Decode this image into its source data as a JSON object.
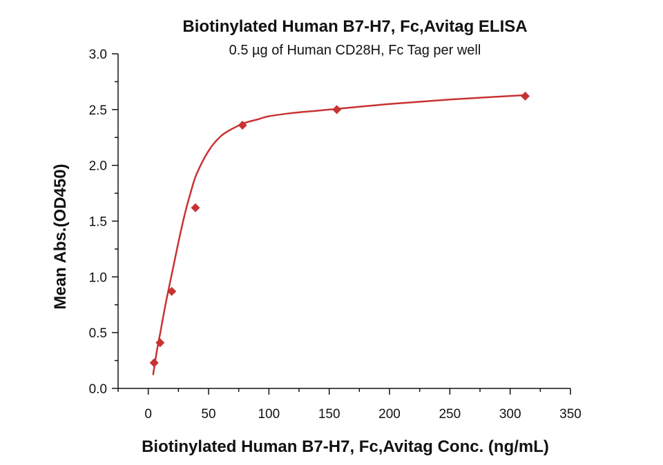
{
  "chart_data": {
    "type": "scatter",
    "title": "Biotinylated Human B7-H7, Fc,Avitag ELISA",
    "subtitle": "0.5 µg of Human CD28H, Fc Tag per well",
    "xlabel": "Biotinylated Human B7-H7, Fc,Avitag Conc. (ng/mL)",
    "ylabel": "Mean Abs.(OD450)",
    "xlim": [
      -25,
      350
    ],
    "ylim": [
      0,
      3.0
    ],
    "x_ticks": [
      "0",
      "50",
      "100",
      "150",
      "200",
      "250",
      "300",
      "350"
    ],
    "y_ticks": [
      "0.0",
      "0.5",
      "1.0",
      "1.5",
      "2.0",
      "2.5",
      "3.0"
    ],
    "grid": false,
    "marker": "diamond",
    "color": "#c83232",
    "series": [
      {
        "x": [
          4.9,
          9.8,
          19.5,
          39.1,
          78.1,
          156.3,
          312.5
        ],
        "y": [
          0.23,
          0.41,
          0.87,
          1.62,
          2.36,
          2.5,
          2.62
        ]
      }
    ],
    "fit_curve": {
      "x": [
        4.0,
        6,
        8,
        10,
        12,
        15,
        20,
        25,
        30,
        35,
        40,
        50,
        60,
        70,
        80,
        90,
        100,
        120,
        140,
        160,
        200,
        250,
        312.5
      ],
      "y": [
        0.12,
        0.26,
        0.39,
        0.5,
        0.62,
        0.79,
        1.05,
        1.31,
        1.55,
        1.75,
        1.92,
        2.13,
        2.26,
        2.33,
        2.38,
        2.41,
        2.44,
        2.47,
        2.49,
        2.51,
        2.55,
        2.59,
        2.63
      ]
    }
  }
}
